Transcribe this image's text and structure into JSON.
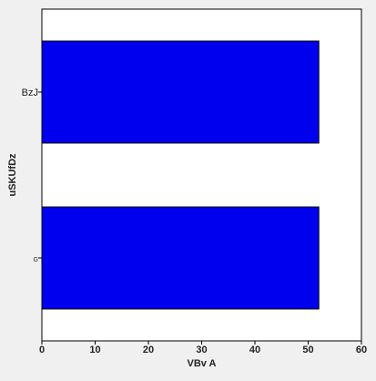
{
  "chart_data": {
    "type": "bar",
    "orientation": "horizontal",
    "categories": [
      "G",
      "BzJ"
    ],
    "values": [
      52,
      52
    ],
    "title": "",
    "xlabel": "VBv A",
    "ylabel": "uSKUfDz",
    "xlim": [
      0,
      60
    ],
    "xticks": [
      "0",
      "10",
      "20",
      "30",
      "40",
      "50",
      "60"
    ],
    "grid": false,
    "legend": "none",
    "colors": {
      "bar_fill": "#0000ee",
      "bar_stroke": "#000000",
      "plot_background": "#ffffff",
      "page_background": "#f0f0f0",
      "axis": "#000000"
    }
  }
}
